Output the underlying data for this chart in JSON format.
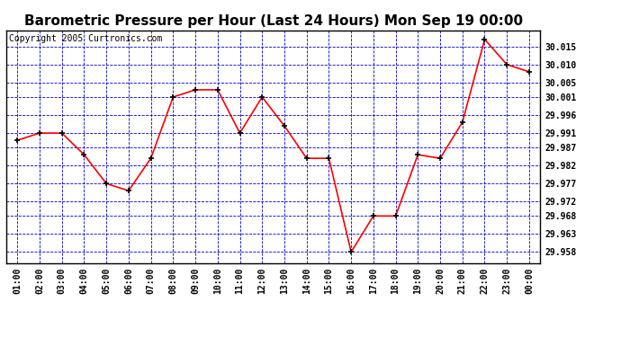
{
  "title": "Barometric Pressure per Hour (Last 24 Hours) Mon Sep 19 00:00",
  "copyright": "Copyright 2005 Curtronics.com",
  "hours": [
    "01:00",
    "02:00",
    "03:00",
    "04:00",
    "05:00",
    "06:00",
    "07:00",
    "08:00",
    "09:00",
    "10:00",
    "11:00",
    "12:00",
    "13:00",
    "14:00",
    "15:00",
    "16:00",
    "17:00",
    "18:00",
    "19:00",
    "20:00",
    "21:00",
    "22:00",
    "23:00",
    "00:00"
  ],
  "values": [
    29.989,
    29.991,
    29.991,
    29.985,
    29.977,
    29.975,
    29.984,
    30.001,
    30.003,
    30.003,
    29.991,
    30.001,
    29.993,
    29.984,
    29.984,
    29.958,
    29.968,
    29.968,
    29.985,
    29.984,
    29.994,
    30.017,
    30.01,
    30.008
  ],
  "ylim_min": 29.955,
  "ylim_max": 30.0195,
  "yticks": [
    30.015,
    30.01,
    30.005,
    30.001,
    29.996,
    29.991,
    29.987,
    29.982,
    29.977,
    29.972,
    29.968,
    29.963,
    29.958
  ],
  "line_color": "red",
  "marker_color": "black",
  "bg_color": "#ffffff",
  "plot_bg_color": "#ffffff",
  "grid_color": "#0000cc",
  "border_color": "black",
  "title_fontsize": 11,
  "copyright_fontsize": 7
}
